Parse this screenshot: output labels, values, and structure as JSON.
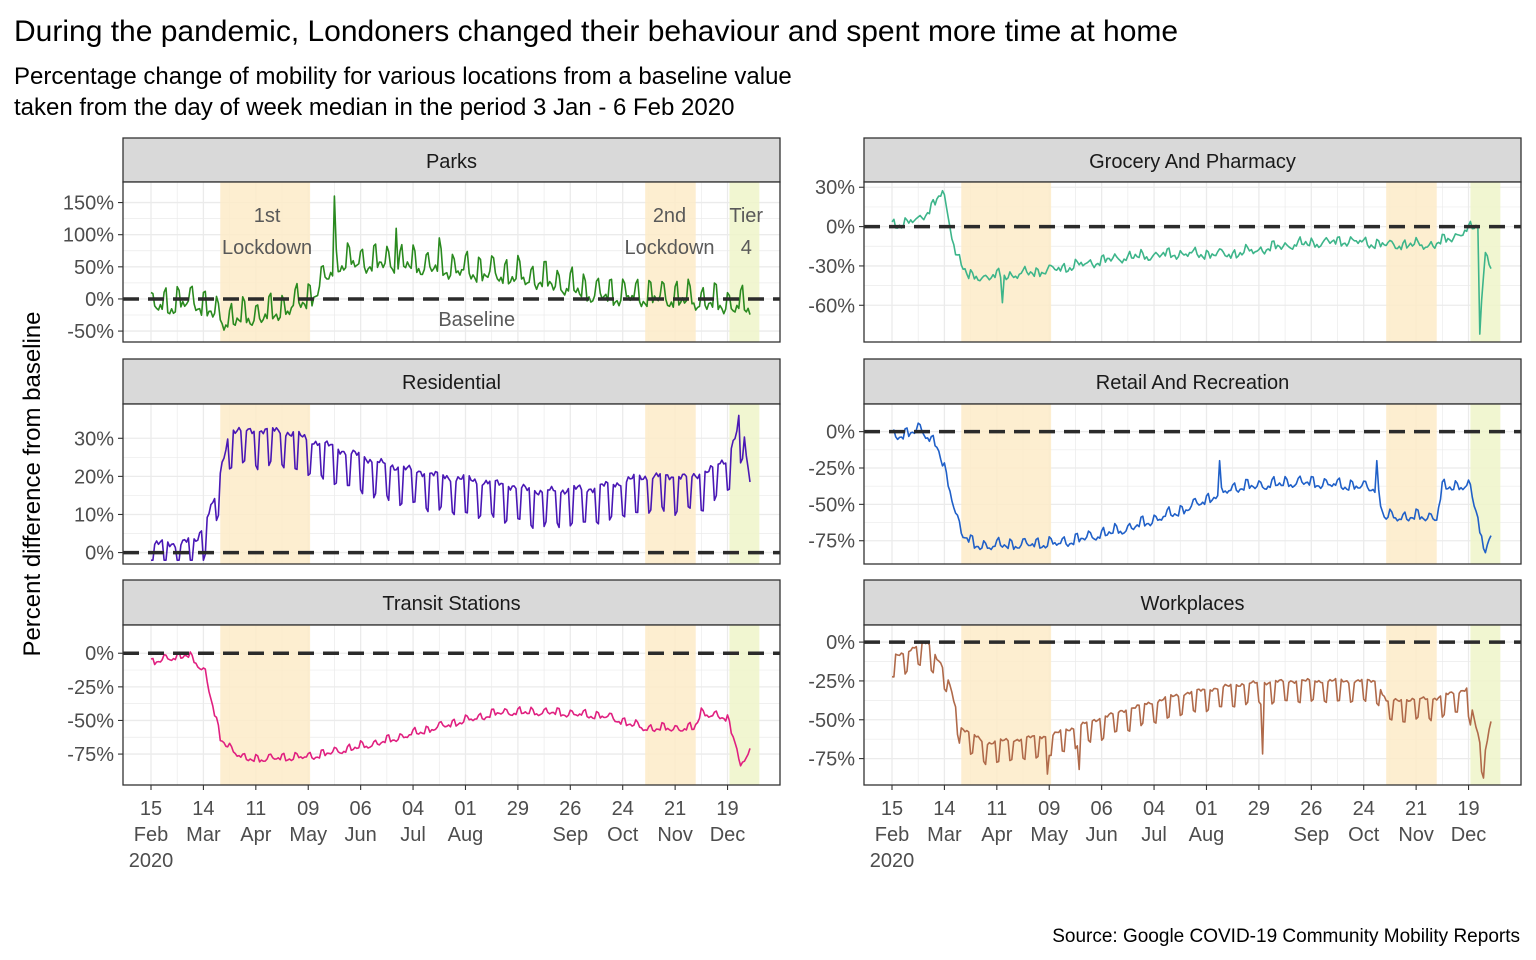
{
  "title": "During the pandemic, Londoners changed their behaviour and spent more time at home",
  "subtitle_lines": [
    "Percentage change of mobility for various locations from a baseline value",
    "taken from the day of week median in the period 3 Jan - 6 Feb 2020"
  ],
  "caption": "Source: Google COVID-19 Community Mobility Reports",
  "colors": {
    "lockdown_band": "#fdebc8",
    "tier4_band": "#eef5c9",
    "strip_bg": "#d9d9d9",
    "grid": "#ebebeb",
    "baseline": "#2b2b2b"
  },
  "chart_data": {
    "type": "line",
    "ylabel": "Percent difference from baseline",
    "x_range": [
      "2020-02-15",
      "2020-12-31"
    ],
    "x_ticks": [
      {
        "date": "2020-02-15",
        "lines": [
          "15",
          "Feb",
          "2020"
        ]
      },
      {
        "date": "2020-03-14",
        "lines": [
          "14",
          "Mar"
        ]
      },
      {
        "date": "2020-04-11",
        "lines": [
          "11",
          "Apr"
        ]
      },
      {
        "date": "2020-05-09",
        "lines": [
          "09",
          "May"
        ]
      },
      {
        "date": "2020-06-06",
        "lines": [
          "06",
          "Jun"
        ]
      },
      {
        "date": "2020-07-04",
        "lines": [
          "04",
          "Jul"
        ]
      },
      {
        "date": "2020-08-01",
        "lines": [
          "01",
          "Aug"
        ]
      },
      {
        "date": "2020-08-29",
        "lines": [
          "29",
          ""
        ]
      },
      {
        "date": "2020-09-26",
        "lines": [
          "26",
          "Sep"
        ]
      },
      {
        "date": "2020-10-24",
        "lines": [
          "24",
          "Oct"
        ]
      },
      {
        "date": "2020-11-21",
        "lines": [
          "21",
          "Nov"
        ]
      },
      {
        "date": "2020-12-19",
        "lines": [
          "19",
          "Dec"
        ]
      }
    ],
    "periods": [
      {
        "kind": "lockdown",
        "start": "2020-03-23",
        "end": "2020-05-10"
      },
      {
        "kind": "lockdown",
        "start": "2020-11-05",
        "end": "2020-12-02"
      },
      {
        "kind": "tier4",
        "start": "2020-12-20",
        "end": "2021-01-05"
      }
    ],
    "annotations": [
      {
        "lines": [
          "1st",
          "Lockdown"
        ],
        "date": "2020-04-17",
        "y": 120
      },
      {
        "lines": [
          "2nd",
          "Lockdown"
        ],
        "date": "2020-11-18",
        "y": 120
      },
      {
        "lines": [
          "Tier",
          "4"
        ],
        "date": "2020-12-29",
        "y": 120
      },
      {
        "lines": [
          "Baseline"
        ],
        "date": "2020-08-07",
        "y": -42
      }
    ],
    "panels": [
      {
        "name": "Parks",
        "color": "#2a8a1f",
        "ylim": [
          -67,
          182
        ],
        "yticks": [
          {
            "v": 150,
            "t": "150%"
          },
          {
            "v": 100,
            "t": "100%"
          },
          {
            "v": 50,
            "t": "50%"
          },
          {
            "v": 0,
            "t": "0%"
          },
          {
            "v": -50,
            "t": "-50%"
          }
        ],
        "amp": 30,
        "noise": 10,
        "spikes": [
          {
            "date": "2020-05-23",
            "v": 160
          },
          {
            "date": "2020-06-25",
            "v": 110
          },
          {
            "date": "2020-07-18",
            "v": 95
          }
        ],
        "keys": [
          [
            "2020-02-15",
            -20
          ],
          [
            "2020-03-10",
            -10
          ],
          [
            "2020-03-25",
            -40
          ],
          [
            "2020-04-20",
            -30
          ],
          [
            "2020-05-10",
            -5
          ],
          [
            "2020-05-25",
            50
          ],
          [
            "2020-06-25",
            50
          ],
          [
            "2020-07-25",
            40
          ],
          [
            "2020-08-25",
            30
          ],
          [
            "2020-09-15",
            20
          ],
          [
            "2020-10-10",
            0
          ],
          [
            "2020-11-20",
            -5
          ],
          [
            "2020-12-31",
            -20
          ]
        ]
      },
      {
        "name": "Grocery And Pharmacy",
        "color": "#3db58a",
        "ylim": [
          -88,
          34
        ],
        "yticks": [
          {
            "v": 30,
            "t": "30%"
          },
          {
            "v": 0,
            "t": "0%"
          },
          {
            "v": -30,
            "t": "-30%"
          },
          {
            "v": -60,
            "t": "-60%"
          }
        ],
        "amp": 4,
        "noise": 3,
        "spikes": [
          {
            "date": "2020-04-14",
            "v": -58
          },
          {
            "date": "2020-12-25",
            "v": -82
          },
          {
            "date": "2021-01-01",
            "v": -60
          }
        ],
        "keys": [
          [
            "2020-02-15",
            0
          ],
          [
            "2020-03-01",
            4
          ],
          [
            "2020-03-13",
            25
          ],
          [
            "2020-03-20",
            -20
          ],
          [
            "2020-03-27",
            -40
          ],
          [
            "2020-04-20",
            -38
          ],
          [
            "2020-05-15",
            -33
          ],
          [
            "2020-06-15",
            -25
          ],
          [
            "2020-07-15",
            -22
          ],
          [
            "2020-08-15",
            -22
          ],
          [
            "2020-09-15",
            -15
          ],
          [
            "2020-10-15",
            -12
          ],
          [
            "2020-11-05",
            -15
          ],
          [
            "2020-12-01",
            -15
          ],
          [
            "2020-12-20",
            -3
          ],
          [
            "2020-12-24",
            0
          ],
          [
            "2020-12-25",
            -82
          ],
          [
            "2020-12-28",
            -18
          ],
          [
            "2020-12-31",
            -32
          ]
        ]
      },
      {
        "name": "Residential",
        "color": "#4a18b5",
        "ylim": [
          -3,
          39
        ],
        "yticks": [
          {
            "v": 30,
            "t": "30%"
          },
          {
            "v": 20,
            "t": "20%"
          },
          {
            "v": 10,
            "t": "10%"
          },
          {
            "v": 0,
            "t": "0%"
          }
        ],
        "amp": -9,
        "noise": 1.2,
        "spikes": [
          {
            "date": "2020-12-25",
            "v": 36
          }
        ],
        "keys": [
          [
            "2020-02-15",
            2
          ],
          [
            "2020-03-10",
            3
          ],
          [
            "2020-03-20",
            14
          ],
          [
            "2020-03-28",
            32
          ],
          [
            "2020-04-25",
            32
          ],
          [
            "2020-05-20",
            28
          ],
          [
            "2020-06-20",
            23
          ],
          [
            "2020-07-20",
            20
          ],
          [
            "2020-08-20",
            18
          ],
          [
            "2020-09-10",
            16
          ],
          [
            "2020-10-10",
            17
          ],
          [
            "2020-11-05",
            20
          ],
          [
            "2020-12-02",
            20
          ],
          [
            "2020-12-18",
            24
          ],
          [
            "2020-12-24",
            32
          ],
          [
            "2020-12-27",
            33
          ],
          [
            "2020-12-31",
            18
          ]
        ]
      },
      {
        "name": "Retail And Recreation",
        "color": "#2060c8",
        "ylim": [
          -91,
          19
        ],
        "yticks": [
          {
            "v": 0,
            "t": "0%"
          },
          {
            "v": -25,
            "t": "-25%"
          },
          {
            "v": -50,
            "t": "-50%"
          },
          {
            "v": -75,
            "t": "-75%"
          }
        ],
        "amp": 5,
        "noise": 2,
        "spikes": [
          {
            "date": "2020-08-08",
            "v": -20
          },
          {
            "date": "2020-10-31",
            "v": -20
          }
        ],
        "keys": [
          [
            "2020-02-15",
            -5
          ],
          [
            "2020-03-01",
            0
          ],
          [
            "2020-03-10",
            -10
          ],
          [
            "2020-03-23",
            -70
          ],
          [
            "2020-03-30",
            -80
          ],
          [
            "2020-05-15",
            -78
          ],
          [
            "2020-06-20",
            -68
          ],
          [
            "2020-07-20",
            -55
          ],
          [
            "2020-08-15",
            -40
          ],
          [
            "2020-09-20",
            -36
          ],
          [
            "2020-10-31",
            -40
          ],
          [
            "2020-11-04",
            -60
          ],
          [
            "2020-12-02",
            -60
          ],
          [
            "2020-12-05",
            -40
          ],
          [
            "2020-12-19",
            -38
          ],
          [
            "2020-12-24",
            -60
          ],
          [
            "2020-12-27",
            -85
          ],
          [
            "2020-12-31",
            -70
          ]
        ]
      },
      {
        "name": "Transit Stations",
        "color": "#e02080",
        "ylim": [
          -98,
          21
        ],
        "yticks": [
          {
            "v": 0,
            "t": "0%"
          },
          {
            "v": -25,
            "t": "-25%"
          },
          {
            "v": -50,
            "t": "-50%"
          },
          {
            "v": -75,
            "t": "-75%"
          }
        ],
        "amp": 4,
        "noise": 1.5,
        "spikes": [],
        "keys": [
          [
            "2020-02-15",
            -8
          ],
          [
            "2020-03-05",
            -2
          ],
          [
            "2020-03-15",
            -15
          ],
          [
            "2020-03-23",
            -65
          ],
          [
            "2020-04-05",
            -80
          ],
          [
            "2020-05-10",
            -78
          ],
          [
            "2020-06-15",
            -68
          ],
          [
            "2020-07-20",
            -55
          ],
          [
            "2020-08-20",
            -45
          ],
          [
            "2020-09-15",
            -45
          ],
          [
            "2020-10-15",
            -48
          ],
          [
            "2020-11-05",
            -57
          ],
          [
            "2020-12-01",
            -57
          ],
          [
            "2020-12-05",
            -45
          ],
          [
            "2020-12-19",
            -50
          ],
          [
            "2020-12-24",
            -70
          ],
          [
            "2020-12-26",
            -88
          ],
          [
            "2020-12-31",
            -72
          ]
        ]
      },
      {
        "name": "Workplaces",
        "color": "#b06a4a",
        "ylim": [
          -92,
          11
        ],
        "yticks": [
          {
            "v": 0,
            "t": "0%"
          },
          {
            "v": -25,
            "t": "-25%"
          },
          {
            "v": -50,
            "t": "-50%"
          },
          {
            "v": -75,
            "t": "-75%"
          }
        ],
        "amp": -13,
        "noise": 1.5,
        "spikes": [
          {
            "date": "2020-05-08",
            "v": -85
          },
          {
            "date": "2020-05-25",
            "v": -82
          },
          {
            "date": "2020-08-31",
            "v": -72
          }
        ],
        "keys": [
          [
            "2020-02-15",
            -10
          ],
          [
            "2020-03-05",
            0
          ],
          [
            "2020-03-15",
            -20
          ],
          [
            "2020-03-23",
            -55
          ],
          [
            "2020-04-05",
            -65
          ],
          [
            "2020-05-10",
            -60
          ],
          [
            "2020-06-15",
            -45
          ],
          [
            "2020-07-20",
            -33
          ],
          [
            "2020-08-20",
            -27
          ],
          [
            "2020-09-15",
            -25
          ],
          [
            "2020-10-31",
            -25
          ],
          [
            "2020-11-05",
            -38
          ],
          [
            "2020-12-02",
            -36
          ],
          [
            "2020-12-18",
            -30
          ],
          [
            "2020-12-24",
            -60
          ],
          [
            "2020-12-27",
            -75
          ],
          [
            "2020-12-31",
            -50
          ]
        ]
      }
    ]
  }
}
